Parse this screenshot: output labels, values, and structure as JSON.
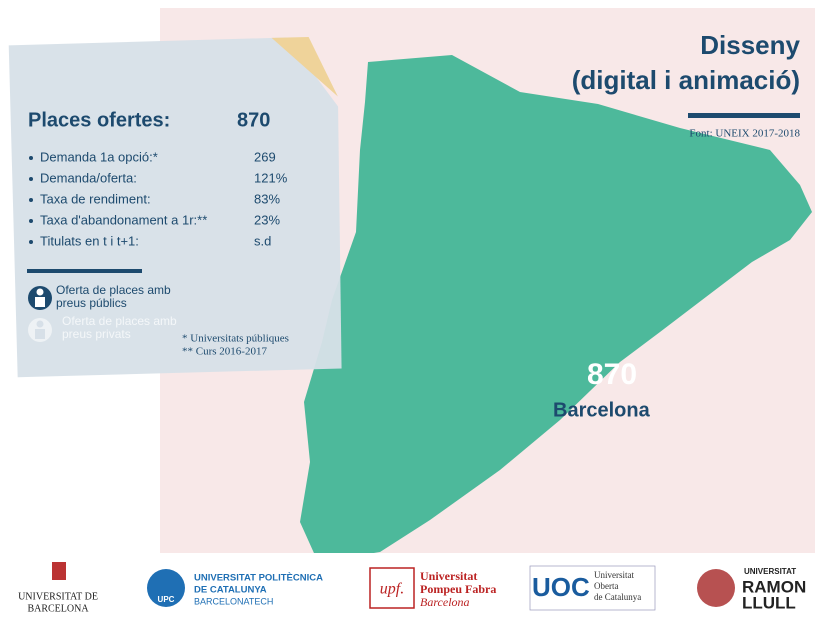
{
  "title": {
    "line1": "Disseny",
    "line2": "(digital i animació)"
  },
  "source": "Font: UNEIX 2017-2018",
  "panel": {
    "heading": "Places ofertes:",
    "total": "870",
    "stats": [
      {
        "label": "Demanda 1a opció:*",
        "value": "269"
      },
      {
        "label": "Demanda/oferta:",
        "value": "121%"
      },
      {
        "label": "Taxa de rendiment:",
        "value": "83%"
      },
      {
        "label": "Taxa d'abandonament a 1r:**",
        "value": "23%"
      },
      {
        "label": "Titulats en t i t+1:",
        "value": "s.d"
      }
    ],
    "legend": [
      {
        "line1": "Oferta de places amb",
        "line2": "preus públics"
      },
      {
        "line1": "Oferta de places amb",
        "line2": "preus privats"
      }
    ],
    "notes": [
      "* Universitats públiques",
      "** Curs 2016-2017"
    ]
  },
  "map_label": {
    "value": "870",
    "city": "Barcelona"
  },
  "logos": [
    {
      "lines": [
        "UNIVERSITAT DE",
        "BARCELONA"
      ]
    },
    {
      "lines": [
        "UNIVERSITAT POLITÈCNICA",
        "DE CATALUNYA",
        "BARCELONATECH"
      ],
      "badge": "UPC"
    },
    {
      "lines": [
        "Universitat",
        "Pompeu Fabra",
        "Barcelona"
      ],
      "badge": "upf."
    },
    {
      "lines": [
        "Universitat",
        "Oberta",
        "de Catalunya"
      ],
      "badge": "UOC"
    },
    {
      "lines": [
        "UNIVERSITAT",
        "RAMON",
        "LLULL"
      ]
    }
  ]
}
